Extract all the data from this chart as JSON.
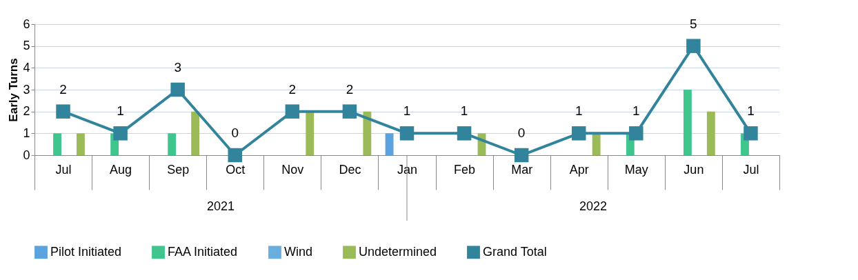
{
  "chart_data": {
    "type": "bar",
    "ylabel": "Early Turns",
    "categories": [
      "Jul",
      "Aug",
      "Sep",
      "Oct",
      "Nov",
      "Dec",
      "Jan",
      "Feb",
      "Mar",
      "Apr",
      "May",
      "Jun",
      "Jul"
    ],
    "series": [
      {
        "name": "Pilot Initiated",
        "color": "#5ba3de",
        "values": [
          0,
          0,
          0,
          0,
          0,
          0,
          1,
          0,
          0,
          0,
          0,
          0,
          0
        ]
      },
      {
        "name": "FAA Initiated",
        "color": "#40c58f",
        "values": [
          1,
          1,
          1,
          0,
          0,
          0,
          0,
          0,
          0,
          0,
          1,
          3,
          1
        ]
      },
      {
        "name": "Wind",
        "color": "#6aaee0",
        "values": [
          0,
          0,
          0,
          0,
          0,
          0,
          0,
          0,
          0,
          0,
          0,
          0,
          0
        ]
      },
      {
        "name": "Undetermined",
        "color": "#9bbb59",
        "values": [
          1,
          0,
          2,
          0,
          2,
          2,
          0,
          1,
          0,
          1,
          0,
          2,
          0
        ]
      },
      {
        "name": "Grand Total",
        "color": "#31849b",
        "type": "line",
        "marker": "square",
        "values": [
          2,
          1,
          3,
          0,
          2,
          2,
          1,
          1,
          0,
          1,
          1,
          5,
          1
        ],
        "value_labels": [
          "2",
          "1",
          "3",
          "0",
          "2",
          "2",
          "1",
          "1",
          "0",
          "1",
          "1",
          "5",
          "1"
        ]
      }
    ],
    "ylim": [
      0,
      6
    ],
    "yticks": [
      0,
      1,
      2,
      3,
      4,
      5,
      6
    ],
    "grid": "y",
    "legend": "bottom",
    "annotations": [
      "2021",
      "2022"
    ]
  }
}
